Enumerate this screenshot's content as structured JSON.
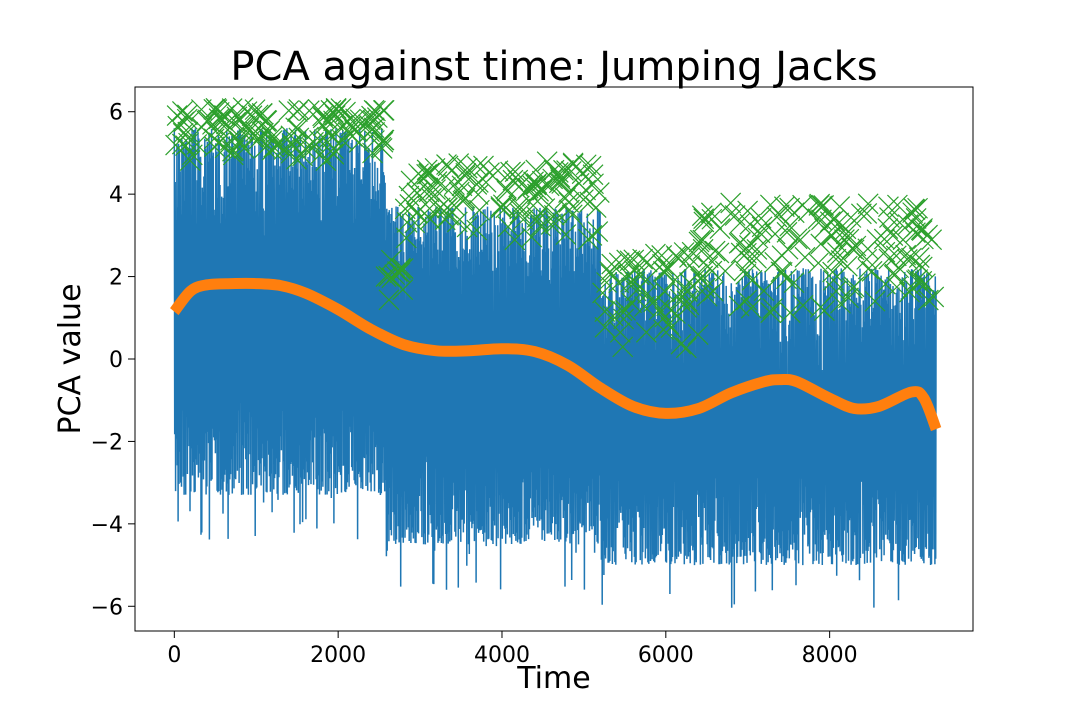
{
  "chart_data": {
    "type": "line",
    "title": "PCA against time: Jumping Jacks",
    "xlabel": "Time",
    "ylabel": "PCA value",
    "xlim": [
      -480,
      9750
    ],
    "ylim": [
      -6.6,
      6.6
    ],
    "xticks": [
      0,
      2000,
      4000,
      6000,
      8000
    ],
    "yticks": [
      -6,
      -4,
      -2,
      0,
      2,
      4,
      6
    ],
    "xtick_labels": [
      "0",
      "2000",
      "4000",
      "6000",
      "8000"
    ],
    "ytick_labels": [
      "−6",
      "−4",
      "−2",
      "0",
      "2",
      "4",
      "6"
    ],
    "grid": false,
    "legend": "none",
    "series": [
      {
        "kind": "oscillating-signal",
        "color": "#1f77b4",
        "x_range": [
          0,
          9300
        ],
        "segments": [
          {
            "x": [
              0,
              2580
            ],
            "upper": 5.6,
            "lower": -3.3
          },
          {
            "x": [
              2580,
              5200
            ],
            "upper": 3.7,
            "lower": -4.5
          },
          {
            "x": [
              5200,
              9300
            ],
            "upper": 2.2,
            "lower": -5.0
          }
        ]
      },
      {
        "kind": "trend-line",
        "color": "#ff7f0e",
        "x": [
          0,
          200,
          400,
          700,
          1000,
          1300,
          1600,
          2000,
          2400,
          2800,
          3200,
          3600,
          4000,
          4400,
          4800,
          5200,
          5600,
          6000,
          6400,
          6800,
          7200,
          7400,
          7600,
          8000,
          8300,
          8600,
          9000,
          9150,
          9300
        ],
        "y": [
          1.15,
          1.65,
          1.8,
          1.83,
          1.83,
          1.78,
          1.6,
          1.2,
          0.72,
          0.35,
          0.2,
          0.2,
          0.25,
          0.18,
          -0.15,
          -0.7,
          -1.15,
          -1.32,
          -1.2,
          -0.82,
          -0.55,
          -0.5,
          -0.55,
          -0.95,
          -1.2,
          -1.15,
          -0.8,
          -0.95,
          -1.7
        ]
      },
      {
        "kind": "peak-markers",
        "color": "#2ca02c",
        "marker": "x",
        "x_range": [
          0,
          9300
        ],
        "bands": [
          {
            "x": [
              0,
              2580
            ],
            "y": [
              4.8,
              6.1
            ]
          },
          {
            "x": [
              2580,
              2800
            ],
            "y": [
              1.4,
              2.6
            ]
          },
          {
            "x": [
              2800,
              5200
            ],
            "y": [
              2.8,
              4.8
            ]
          },
          {
            "x": [
              5200,
              6400
            ],
            "y": [
              0.2,
              2.6
            ]
          },
          {
            "x": [
              6400,
              9300
            ],
            "y": [
              1.0,
              3.8
            ]
          }
        ]
      }
    ]
  }
}
